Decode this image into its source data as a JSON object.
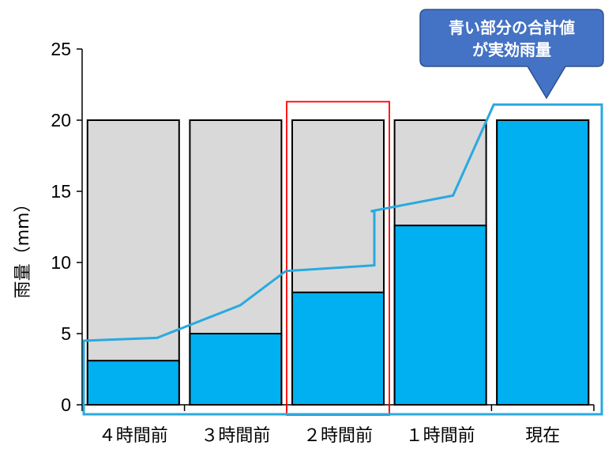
{
  "chart_data": {
    "type": "bar",
    "categories": [
      "４時間前",
      "３時間前",
      "２時間前",
      "１時間前",
      "現在"
    ],
    "series": [
      {
        "values": [
          20,
          20,
          20,
          20,
          20
        ],
        "color": "#d9d9d9"
      },
      {
        "values": [
          3.1,
          5.0,
          7.9,
          12.6,
          20
        ],
        "color": "#00b0f0"
      }
    ],
    "ylabel": "雨量（mm）",
    "ylim": [
      0,
      25
    ],
    "yticks": [
      0,
      5,
      10,
      15,
      20,
      25
    ],
    "grid": false,
    "highlight_category": "２時間前",
    "highlight_color": "#ff0000",
    "cumulative_line": {
      "color": "#29a9e0",
      "values": [
        4.5,
        4.7,
        7.0,
        9.4,
        9.8,
        13.6,
        14.7,
        21.1
      ]
    },
    "callout": {
      "lines": [
        "青い部分の合計値",
        "が実効雨量"
      ],
      "fill_color": "#4472c4"
    }
  }
}
